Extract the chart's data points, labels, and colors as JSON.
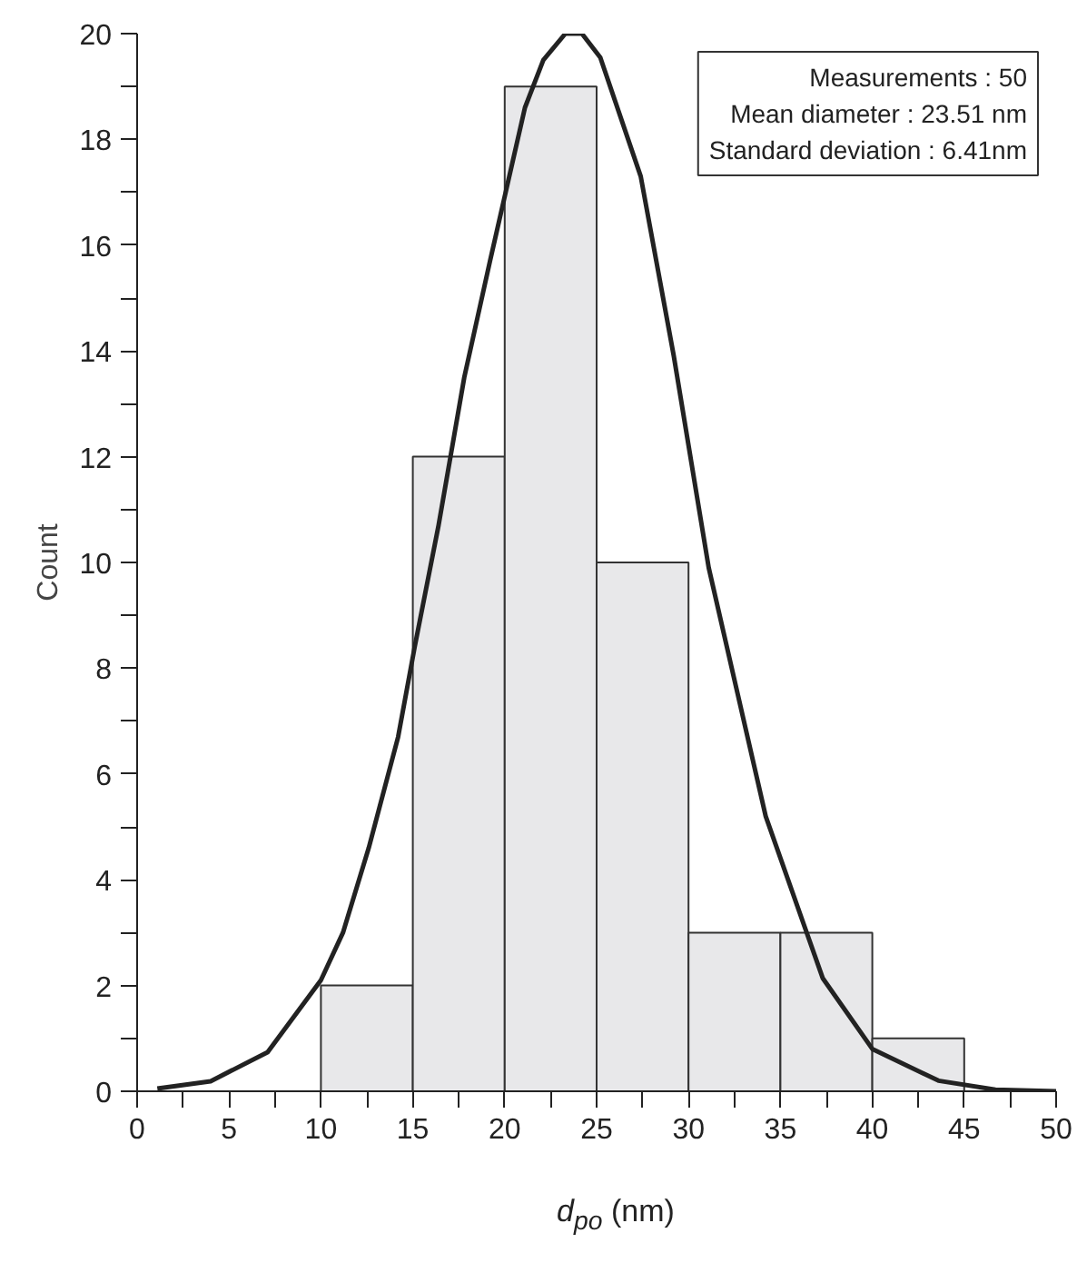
{
  "chart_data": {
    "type": "histogram",
    "xlabel": "d$_{po}$ (nm)",
    "ylabel": "Count",
    "bins": [
      10,
      15,
      20,
      25,
      30,
      35,
      40,
      45
    ],
    "values": [
      2,
      12,
      19,
      10,
      3,
      3,
      1
    ],
    "color": "#e8e8ea",
    "series": [
      {
        "type": "line",
        "color": "#222222",
        "x": [
          1.1,
          4.0,
          7.1,
          10.0,
          11.2,
          12.6,
          14.2,
          15.1,
          16.4,
          17.8,
          19.2,
          21.1,
          22.1,
          23.3,
          24.2,
          25.2,
          27.4,
          29.2,
          31.1,
          34.2,
          37.3,
          40.0,
          43.6,
          46.7,
          50.0
        ],
        "values": [
          0.05,
          0.19,
          0.74,
          2.1,
          3.0,
          4.6,
          6.7,
          8.4,
          10.7,
          13.5,
          15.7,
          18.6,
          19.5,
          20.0,
          20.0,
          19.55,
          17.3,
          13.9,
          9.9,
          5.2,
          2.14,
          0.8,
          0.2,
          0.03,
          0.0
        ]
      }
    ],
    "xlim": [
      0,
      50
    ],
    "ylim": [
      0,
      20
    ],
    "xticks": [
      0,
      {
        "value": 2.5,
        "label": null
      },
      5,
      {
        "value": 7.5,
        "label": null
      },
      10,
      {
        "value": 12.5,
        "label": null
      },
      15,
      {
        "value": 17.5,
        "label": null
      },
      20,
      {
        "value": 22.5,
        "label": null
      },
      25,
      {
        "value": 27.5,
        "label": null
      },
      30,
      {
        "value": 32.5,
        "label": null
      },
      35,
      {
        "value": 37.5,
        "label": null
      },
      40,
      {
        "value": 42.5,
        "label": null
      },
      45,
      {
        "value": 47.5,
        "label": null
      },
      50
    ],
    "yticks": [
      0,
      {
        "value": 1,
        "label": null
      },
      2,
      {
        "value": 3,
        "label": null
      },
      4,
      {
        "value": 5,
        "label": null
      },
      6,
      {
        "value": 7,
        "label": null
      },
      8,
      {
        "value": 9,
        "label": null
      },
      10,
      {
        "value": 11,
        "label": null
      },
      12,
      {
        "value": 13,
        "label": null
      },
      14,
      {
        "value": 15,
        "label": null
      },
      16,
      {
        "value": 17,
        "label": null
      },
      18,
      {
        "value": 19,
        "label": null
      },
      20
    ],
    "grid": false,
    "annotations": [
      "Measurements : 50",
      "Mean diameter : 23.51 nm",
      "Standard deviation : 6.41nm"
    ]
  }
}
